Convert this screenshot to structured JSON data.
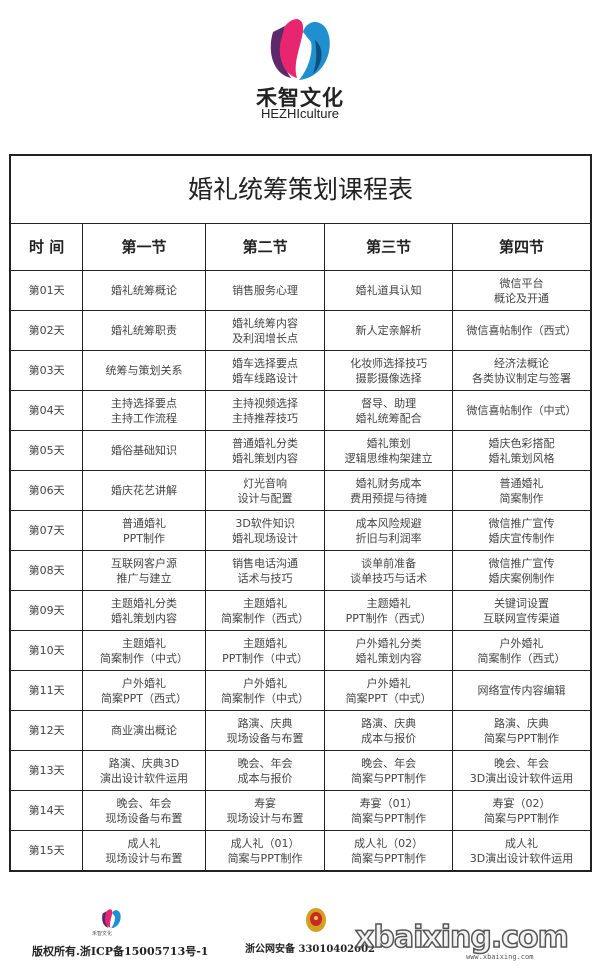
{
  "brand": {
    "name_cn": "禾智文化",
    "name_en": "HEZHIculture",
    "colors": {
      "pink": "#e8256f",
      "blue": "#1f8fcf",
      "purple": "#5a2a6a"
    }
  },
  "table": {
    "title": "婚礼统筹策划课程表",
    "headers": [
      "时 间",
      "第一节",
      "第二节",
      "第三节",
      "第四节"
    ],
    "rows": [
      {
        "day": "第01天",
        "cells": [
          [
            "婚礼统筹概论"
          ],
          [
            "销售服务心理"
          ],
          [
            "婚礼道具认知"
          ],
          [
            "微信平台",
            "概论及开通"
          ]
        ]
      },
      {
        "day": "第02天",
        "cells": [
          [
            "婚礼统筹职责"
          ],
          [
            "婚礼统筹内容",
            "及利润增长点"
          ],
          [
            "新人定亲解析"
          ],
          [
            "微信喜帖制作（西式）"
          ]
        ]
      },
      {
        "day": "第03天",
        "cells": [
          [
            "统筹与策划关系"
          ],
          [
            "婚车选择要点",
            "婚车线路设计"
          ],
          [
            "化妆师选择技巧",
            "摄影摄像选择"
          ],
          [
            "经济法概论",
            "各类协议制定与签署"
          ]
        ]
      },
      {
        "day": "第04天",
        "cells": [
          [
            "主持选择要点",
            "主持工作流程"
          ],
          [
            "主持视频选择",
            "主持推荐技巧"
          ],
          [
            "督导、助理",
            "婚礼统筹配合"
          ],
          [
            "微信喜帖制作（中式）"
          ]
        ]
      },
      {
        "day": "第05天",
        "cells": [
          [
            "婚俗基础知识"
          ],
          [
            "普通婚礼分类",
            "婚礼策划内容"
          ],
          [
            "婚礼策划",
            "逻辑思维构架建立"
          ],
          [
            "婚庆色彩搭配",
            "婚礼策划风格"
          ]
        ]
      },
      {
        "day": "第06天",
        "cells": [
          [
            "婚庆花艺讲解"
          ],
          [
            "灯光音响",
            "设计与配置"
          ],
          [
            "婚礼财务成本",
            "费用预提与待摊"
          ],
          [
            "普通婚礼",
            "简案制作"
          ]
        ]
      },
      {
        "day": "第07天",
        "cells": [
          [
            "普通婚礼",
            "PPT制作"
          ],
          [
            "3D软件知识",
            "婚礼现场设计"
          ],
          [
            "成本风险规避",
            "折旧与利润率"
          ],
          [
            "微信推广宣传",
            "婚庆宣传制作"
          ]
        ]
      },
      {
        "day": "第08天",
        "cells": [
          [
            "互联网客户源",
            "推广与建立"
          ],
          [
            "销售电话沟通",
            "话术与技巧"
          ],
          [
            "谈单前准备",
            "谈单技巧与话术"
          ],
          [
            "微信推广宣传",
            "婚庆案例制作"
          ]
        ]
      },
      {
        "day": "第09天",
        "cells": [
          [
            "主题婚礼分类",
            "婚礼策划内容"
          ],
          [
            "主题婚礼",
            "简案制作（西式）"
          ],
          [
            "主题婚礼",
            "PPT制作（西式）"
          ],
          [
            "关键词设置",
            "互联网宣传渠道"
          ]
        ]
      },
      {
        "day": "第10天",
        "cells": [
          [
            "主题婚礼",
            "简案制作（中式）"
          ],
          [
            "主题婚礼",
            "PPT制作（中式）"
          ],
          [
            "户外婚礼分类",
            "婚礼策划内容"
          ],
          [
            "户外婚礼",
            "简案制作（西式）"
          ]
        ]
      },
      {
        "day": "第11天",
        "cells": [
          [
            "户外婚礼",
            "简案PPT（西式）"
          ],
          [
            "户外婚礼",
            "简案制作（中式）"
          ],
          [
            "户外婚礼",
            "简案PPT（中式）"
          ],
          [
            "网络宣传内容编辑"
          ]
        ]
      },
      {
        "day": "第12天",
        "cells": [
          [
            "商业演出概论"
          ],
          [
            "路演、庆典",
            "现场设备与布置"
          ],
          [
            "路演、庆典",
            "成本与报价"
          ],
          [
            "路演、庆典",
            "简案与PPT制作"
          ]
        ]
      },
      {
        "day": "第13天",
        "cells": [
          [
            "路演、庆典3D",
            "演出设计软件运用"
          ],
          [
            "晚会、年会",
            "成本与报价"
          ],
          [
            "晚会、年会",
            "简案与PPT制作"
          ],
          [
            "晚会、年会",
            "3D演出设计软件运用"
          ]
        ]
      },
      {
        "day": "第14天",
        "cells": [
          [
            "晚会、年会",
            "现场设备与布置"
          ],
          [
            "寿宴",
            "现场设计与布置"
          ],
          [
            "寿宴（01）",
            "简案与PPT制作"
          ],
          [
            "寿宴（02）",
            "简案与PPT制作"
          ]
        ]
      },
      {
        "day": "第15天",
        "cells": [
          [
            "成人礼",
            "现场设计与布置"
          ],
          [
            "成人礼（01）",
            "简案与PPT制作"
          ],
          [
            "成人礼（02）",
            "简案与PPT制作"
          ],
          [
            "成人礼",
            "3D演出设计软件运用"
          ]
        ]
      }
    ]
  },
  "footer": {
    "logo_text": "禾智文化",
    "copyright": "版权所有.浙ICP备15005713号-1",
    "police_record": "浙公网安备 33010402002",
    "watermark": "xbaixing.com",
    "watermark_url": "www.xbaixing.com"
  }
}
